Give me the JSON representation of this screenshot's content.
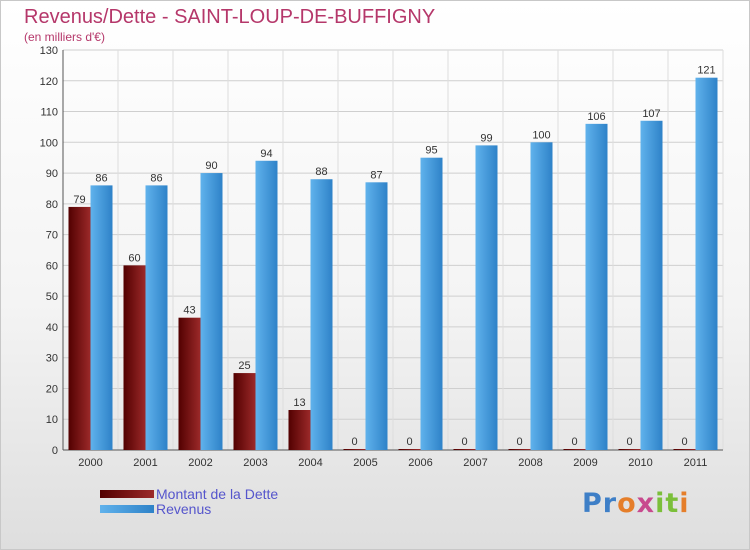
{
  "chart_data": {
    "type": "bar",
    "title": "Revenus/Dette - SAINT-LOUP-DE-BUFFIGNY",
    "subtitle": "(en milliers d'€)",
    "categories": [
      "2000",
      "2001",
      "2002",
      "2003",
      "2004",
      "2005",
      "2006",
      "2007",
      "2008",
      "2009",
      "2010",
      "2011"
    ],
    "series": [
      {
        "name": "Montant de la Dette",
        "color": "#8b1a1a",
        "values": [
          79,
          60,
          43,
          25,
          13,
          0,
          0,
          0,
          0,
          0,
          0,
          0
        ]
      },
      {
        "name": "Revenus",
        "color": "#4a9ee0",
        "values": [
          86,
          86,
          90,
          94,
          88,
          87,
          95,
          99,
          100,
          106,
          107,
          121
        ]
      }
    ],
    "ylim": [
      0,
      130
    ],
    "yticks": [
      0,
      10,
      20,
      30,
      40,
      50,
      60,
      70,
      80,
      90,
      100,
      110,
      120,
      130
    ],
    "grid": true,
    "legend_position": "bottom-left"
  },
  "logo": {
    "text": "Proxiti"
  }
}
